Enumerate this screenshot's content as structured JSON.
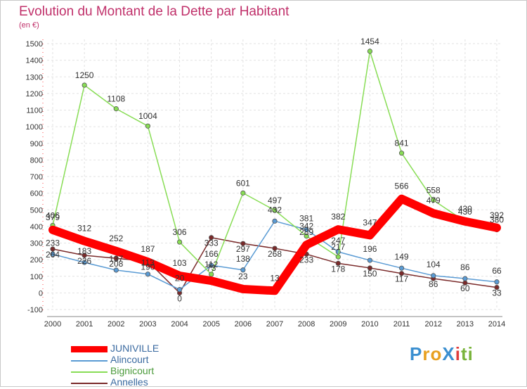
{
  "title": "Evolution du Montant de la Dette par Habitant",
  "subtitle": "(en €)",
  "logo": {
    "text": "ProXiti",
    "letters": [
      {
        "ch": "P",
        "color": "#3b8fd0"
      },
      {
        "ch": "r",
        "color": "#e8a020"
      },
      {
        "ch": "o",
        "color": "#e8a020"
      },
      {
        "ch": "X",
        "color": "#3b8fd0"
      },
      {
        "ch": "i",
        "color": "#e03c3c"
      },
      {
        "ch": "t",
        "color": "#7ab43c"
      },
      {
        "ch": "i",
        "color": "#7ab43c"
      }
    ]
  },
  "chart_data": {
    "type": "line",
    "title": "Evolution du Montant de la Dette par Habitant",
    "subtitle": "(en €)",
    "x": [
      "2000",
      "2001",
      "2002",
      "2003",
      "2004",
      "2005",
      "2006",
      "2007",
      "2008",
      "2009",
      "2010",
      "2011",
      "2012",
      "2013",
      "2014"
    ],
    "ylim": [
      -100,
      1500
    ],
    "yticks": [
      -100,
      0,
      100,
      200,
      300,
      400,
      500,
      600,
      700,
      800,
      900,
      1000,
      1100,
      1200,
      1300,
      1400,
      1500
    ],
    "grid": true,
    "legend_position": "bottom-left",
    "series": [
      {
        "name": "JUNIVILLE",
        "color": "#ff0000",
        "values": [
          379,
          312,
          252,
          187,
          103,
          73,
          23,
          13,
          289,
          382,
          347,
          566,
          479,
          430,
          392
        ]
      },
      {
        "name": "Alincourt",
        "color": "#5a9bd4",
        "values": [
          233,
          183,
          137,
          113,
          20,
          166,
          138,
          432,
          381,
          247,
          196,
          149,
          104,
          86,
          66
        ]
      },
      {
        "name": "Bignicourt",
        "color": "#88dd55",
        "values": [
          406,
          1250,
          1108,
          1004,
          306,
          112,
          601,
          497,
          342,
          217,
          1454,
          841,
          558,
          430,
          380
        ]
      },
      {
        "name": "Annelles",
        "color": "#7a2a2a",
        "values": [
          264,
          226,
          208,
          190,
          0,
          333,
          297,
          268,
          233,
          178,
          150,
          117,
          86,
          60,
          33
        ]
      }
    ],
    "data_labels": [
      {
        "series": 0,
        "labels": [
          "379",
          "312",
          "252",
          "187",
          "103",
          "73",
          "23",
          "13",
          "289",
          "382",
          "347",
          "566",
          "479",
          "430",
          "392"
        ]
      },
      {
        "series": 1,
        "labels": [
          "233",
          "183",
          "137",
          "113",
          "20",
          "166",
          "138",
          "432",
          "381",
          "247",
          "196",
          "149",
          "104",
          "86",
          "66"
        ]
      },
      {
        "series": 2,
        "labels": [
          "406",
          "1250",
          "1108",
          "1004",
          "306",
          "112",
          "601",
          "497",
          "342",
          "217",
          "1454",
          "841",
          "558",
          "430",
          "380"
        ]
      },
      {
        "series": 3,
        "labels": [
          "264",
          "226",
          "208",
          "190",
          "0",
          "333",
          "297",
          "268",
          "233",
          "178",
          "150",
          "117",
          "86",
          "60",
          "33"
        ]
      }
    ]
  }
}
